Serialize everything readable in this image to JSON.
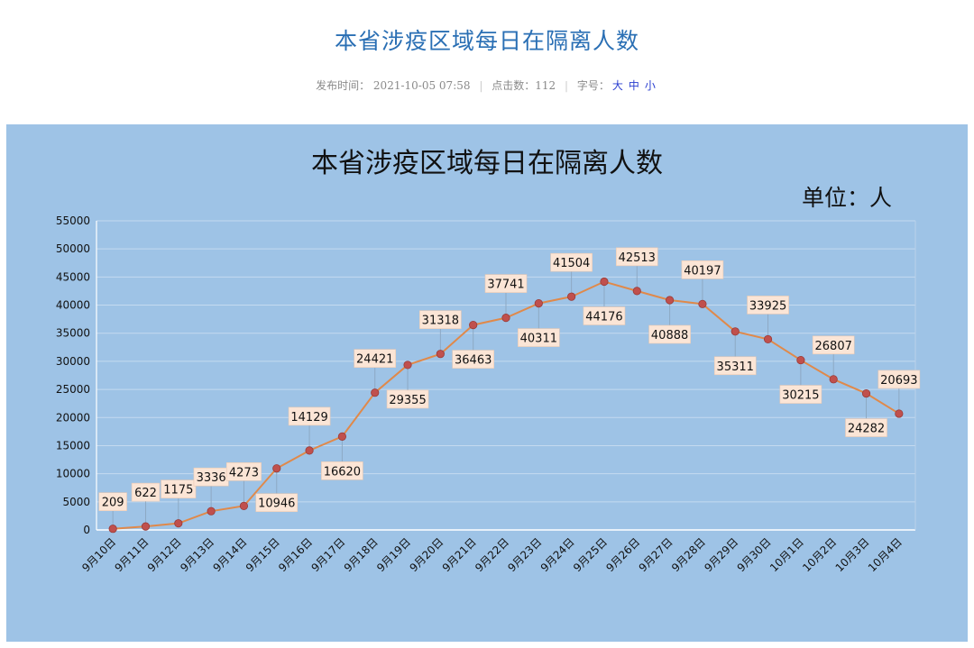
{
  "article": {
    "title": "本省涉疫区域每日在隔离人数",
    "meta": {
      "publish_label": "发布时间：",
      "publish_time": "2021-10-05 07:58",
      "clicks_label": "点击数：",
      "clicks": "112",
      "fontsize_label": "字号：",
      "fontsize_options": [
        "大",
        "中",
        "小"
      ]
    }
  },
  "colors": {
    "panel": "#9ec3e6",
    "line": "#e0894a",
    "point": "#c0504d",
    "label_bg": "#fbe5d6",
    "title_link": "#2a6fb4"
  },
  "chart_data": {
    "type": "line",
    "title": "本省涉疫区域每日在隔离人数",
    "unit_label": "单位：人",
    "categories": [
      "9月10日",
      "9月11日",
      "9月12日",
      "9月13日",
      "9月14日",
      "9月15日",
      "9月16日",
      "9月17日",
      "9月18日",
      "9月19日",
      "9月20日",
      "9月21日",
      "9月22日",
      "9月23日",
      "9月24日",
      "9月25日",
      "9月26日",
      "9月27日",
      "9月28日",
      "9月29日",
      "9月30日",
      "10月1日",
      "10月2日",
      "10月3日",
      "10月4日"
    ],
    "values": [
      209,
      622,
      1175,
      3336,
      4273,
      10946,
      14129,
      16620,
      24421,
      29355,
      31318,
      36463,
      37741,
      40311,
      41504,
      44176,
      42513,
      40888,
      40197,
      35311,
      33925,
      30215,
      26807,
      24282,
      20693
    ],
    "label_positions": [
      "above",
      "above",
      "above",
      "above",
      "above",
      "below",
      "above",
      "below",
      "above",
      "below",
      "above",
      "below",
      "above",
      "below",
      "above",
      "below",
      "above",
      "below",
      "above",
      "below",
      "above",
      "below",
      "above",
      "below",
      "above"
    ],
    "ylim": [
      0,
      55000
    ],
    "yticks": [
      0,
      5000,
      10000,
      15000,
      20000,
      25000,
      30000,
      35000,
      40000,
      45000,
      50000,
      55000
    ],
    "grid": true,
    "legend": "none"
  }
}
